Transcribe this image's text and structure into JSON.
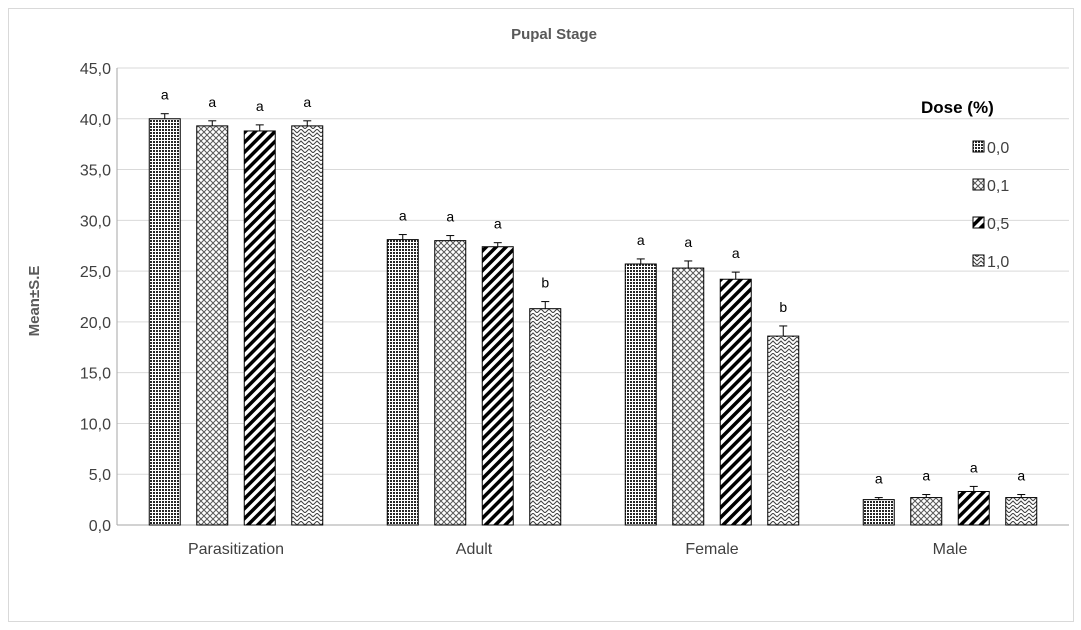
{
  "chart_data": {
    "type": "bar",
    "title": "Pupal Stage",
    "ylabel": "Mean±S.E",
    "xlabel": "",
    "ylim": [
      0,
      45
    ],
    "yticks": [
      "0,0",
      "5,0",
      "10,0",
      "15,0",
      "20,0",
      "25,0",
      "30,0",
      "35,0",
      "40,0",
      "45,0"
    ],
    "categories": [
      "Parasitization",
      "Adult",
      "Female",
      "Male"
    ],
    "legend_title": "Dose (%)",
    "legend_position": "right",
    "grid": true,
    "series": [
      {
        "name": "0,0",
        "values": [
          40.0,
          28.1,
          25.7,
          2.5
        ],
        "errors": [
          0.5,
          0.5,
          0.5,
          0.2
        ],
        "labels": [
          "a",
          "a",
          "a",
          "a"
        ],
        "pattern": "pat-dots"
      },
      {
        "name": "0,1",
        "values": [
          39.3,
          28.0,
          25.3,
          2.7
        ],
        "errors": [
          0.5,
          0.5,
          0.7,
          0.3
        ],
        "labels": [
          "a",
          "a",
          "a",
          "a"
        ],
        "pattern": "pat-cross"
      },
      {
        "name": "0,5",
        "values": [
          38.8,
          27.4,
          24.2,
          3.3
        ],
        "errors": [
          0.6,
          0.4,
          0.7,
          0.5
        ],
        "labels": [
          "a",
          "a",
          "a",
          "a"
        ],
        "pattern": "pat-diag"
      },
      {
        "name": "1,0",
        "values": [
          39.3,
          21.3,
          18.6,
          2.7
        ],
        "errors": [
          0.5,
          0.7,
          1.0,
          0.3
        ],
        "labels": [
          "a",
          "b",
          "b",
          "a"
        ],
        "pattern": "pat-zig"
      }
    ]
  }
}
